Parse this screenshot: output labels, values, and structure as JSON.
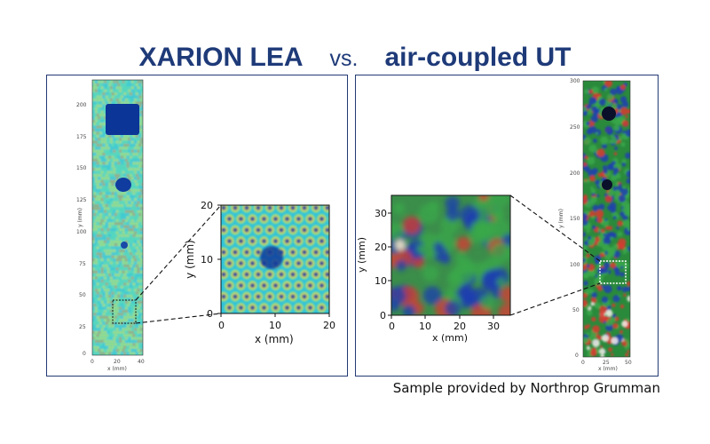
{
  "title": {
    "left": "XARION LEA",
    "middle": "vs.",
    "right": "air-coupled UT"
  },
  "left_panel": {
    "strip": {
      "ylabel": "y (mm)",
      "xlabel": "x (mm)",
      "yticks": [
        "200",
        "175",
        "150",
        "125",
        "100",
        "75",
        "50",
        "25",
        "0"
      ],
      "xticks": [
        "0",
        "20",
        "40"
      ]
    },
    "zoom": {
      "ylabel": "y (mm)",
      "xlabel": "x (mm)",
      "yticks": [
        "20",
        "10",
        "0"
      ],
      "xticks": [
        "0",
        "10",
        "20"
      ]
    }
  },
  "right_panel": {
    "zoom": {
      "ylabel": "y (mm)",
      "xlabel": "x (mm)",
      "yticks": [
        "30",
        "20",
        "10",
        "0"
      ],
      "xticks": [
        "0",
        "10",
        "20",
        "30"
      ]
    },
    "strip": {
      "ylabel": "y (mm)",
      "xlabel": "x (mm)",
      "yticks": [
        "300",
        "250",
        "200",
        "150",
        "100",
        "50",
        "0"
      ],
      "xticks": [
        "0",
        "25",
        "50"
      ]
    }
  },
  "caption": "Sample provided by Northrop Grumman",
  "colors": {
    "title": "#1e3a78",
    "frame": "#243a75",
    "lea_background": "#2ec3dc",
    "lea_mid": "#5ee0b0",
    "lea_high": "#e6e84a",
    "lea_defect": "#123a9c",
    "ut_red": "#d93a30",
    "ut_green": "#3aa84a",
    "ut_blue": "#1e3fb0"
  }
}
